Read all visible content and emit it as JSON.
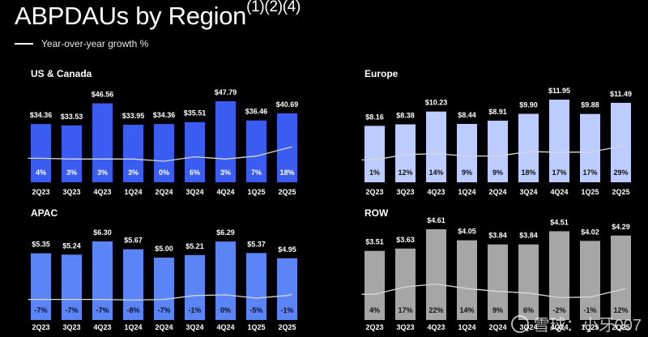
{
  "header": {
    "title": "ABPDAUs by Region",
    "title_sup": "(1)(2)(4)",
    "legend_label": "Year-over-year growth %"
  },
  "watermark": "雪球：小牙007",
  "colors": {
    "background": "#000000",
    "us_canada": "#3b5cf0",
    "europe": "#bcccff",
    "apac": "#5b84f7",
    "row": "#a6a6a6",
    "growth_line": "#d8d8d8"
  },
  "chart_data": [
    {
      "type": "bar",
      "title": "US & Canada",
      "categories": [
        "2Q23",
        "3Q23",
        "4Q23",
        "1Q24",
        "2Q24",
        "3Q24",
        "4Q24",
        "1Q25",
        "2Q25"
      ],
      "values": [
        34.36,
        33.53,
        46.56,
        33.95,
        34.36,
        35.51,
        47.79,
        36.46,
        40.69
      ],
      "value_labels": [
        "$34.36",
        "$33.53",
        "$46.56",
        "$33.95",
        "$34.36",
        "$35.51",
        "$47.79",
        "$36.46",
        "$40.69"
      ],
      "growth": [
        4,
        3,
        3,
        3,
        0,
        6,
        3,
        7,
        18
      ],
      "growth_labels": [
        "4%",
        "3%",
        "3%",
        "3%",
        "0%",
        "6%",
        "3%",
        "7%",
        "18%"
      ],
      "color": "#3b5cf0",
      "growth_text_color": "#ffffff"
    },
    {
      "type": "bar",
      "title": "Europe",
      "categories": [
        "2Q23",
        "3Q23",
        "4Q23",
        "1Q24",
        "2Q24",
        "3Q24",
        "4Q24",
        "1Q25",
        "2Q25"
      ],
      "values": [
        8.16,
        8.38,
        10.23,
        8.44,
        8.91,
        9.9,
        11.95,
        9.88,
        11.49
      ],
      "value_labels": [
        "$8.16",
        "$8.38",
        "$10.23",
        "$8.44",
        "$8.91",
        "$9.90",
        "$11.95",
        "$9.88",
        "$11.49"
      ],
      "growth": [
        1,
        12,
        14,
        9,
        9,
        18,
        17,
        17,
        29
      ],
      "growth_labels": [
        "1%",
        "12%",
        "14%",
        "9%",
        "9%",
        "18%",
        "17%",
        "17%",
        "29%"
      ],
      "color": "#bcccff",
      "growth_text_color": "#111111"
    },
    {
      "type": "bar",
      "title": "APAC",
      "categories": [
        "2Q23",
        "3Q23",
        "4Q23",
        "1Q24",
        "2Q24",
        "3Q24",
        "4Q24",
        "1Q25",
        "2Q25"
      ],
      "values": [
        5.35,
        5.24,
        6.3,
        5.67,
        5.0,
        5.21,
        6.29,
        5.37,
        4.95
      ],
      "value_labels": [
        "$5.35",
        "$5.24",
        "$6.30",
        "$5.67",
        "$5.00",
        "$5.21",
        "$6.29",
        "$5.37",
        "$4.95"
      ],
      "growth": [
        -7,
        -7,
        -7,
        -8,
        -7,
        -1,
        0,
        -5,
        -1
      ],
      "growth_labels": [
        "-7%",
        "-7%",
        "-7%",
        "-8%",
        "-7%",
        "-1%",
        "0%",
        "-5%",
        "-1%"
      ],
      "color": "#5b84f7",
      "growth_text_color": "#111111"
    },
    {
      "type": "bar",
      "title": "ROW",
      "categories": [
        "2Q23",
        "3Q23",
        "4Q23",
        "1Q24",
        "2Q24",
        "3Q24",
        "4Q24",
        "1Q25",
        "2Q25"
      ],
      "values": [
        3.51,
        3.63,
        4.61,
        4.05,
        3.84,
        3.84,
        4.51,
        4.02,
        4.29
      ],
      "value_labels": [
        "$3.51",
        "$3.63",
        "$4.61",
        "$4.05",
        "$3.84",
        "$3.84",
        "$4.51",
        "$4.02",
        "$4.29"
      ],
      "growth": [
        4,
        17,
        22,
        14,
        9,
        6,
        -2,
        -1,
        12
      ],
      "growth_labels": [
        "4%",
        "17%",
        "22%",
        "14%",
        "9%",
        "6%",
        "-2%",
        "-1%",
        "12%"
      ],
      "color": "#a6a6a6",
      "growth_text_color": "#111111"
    }
  ]
}
